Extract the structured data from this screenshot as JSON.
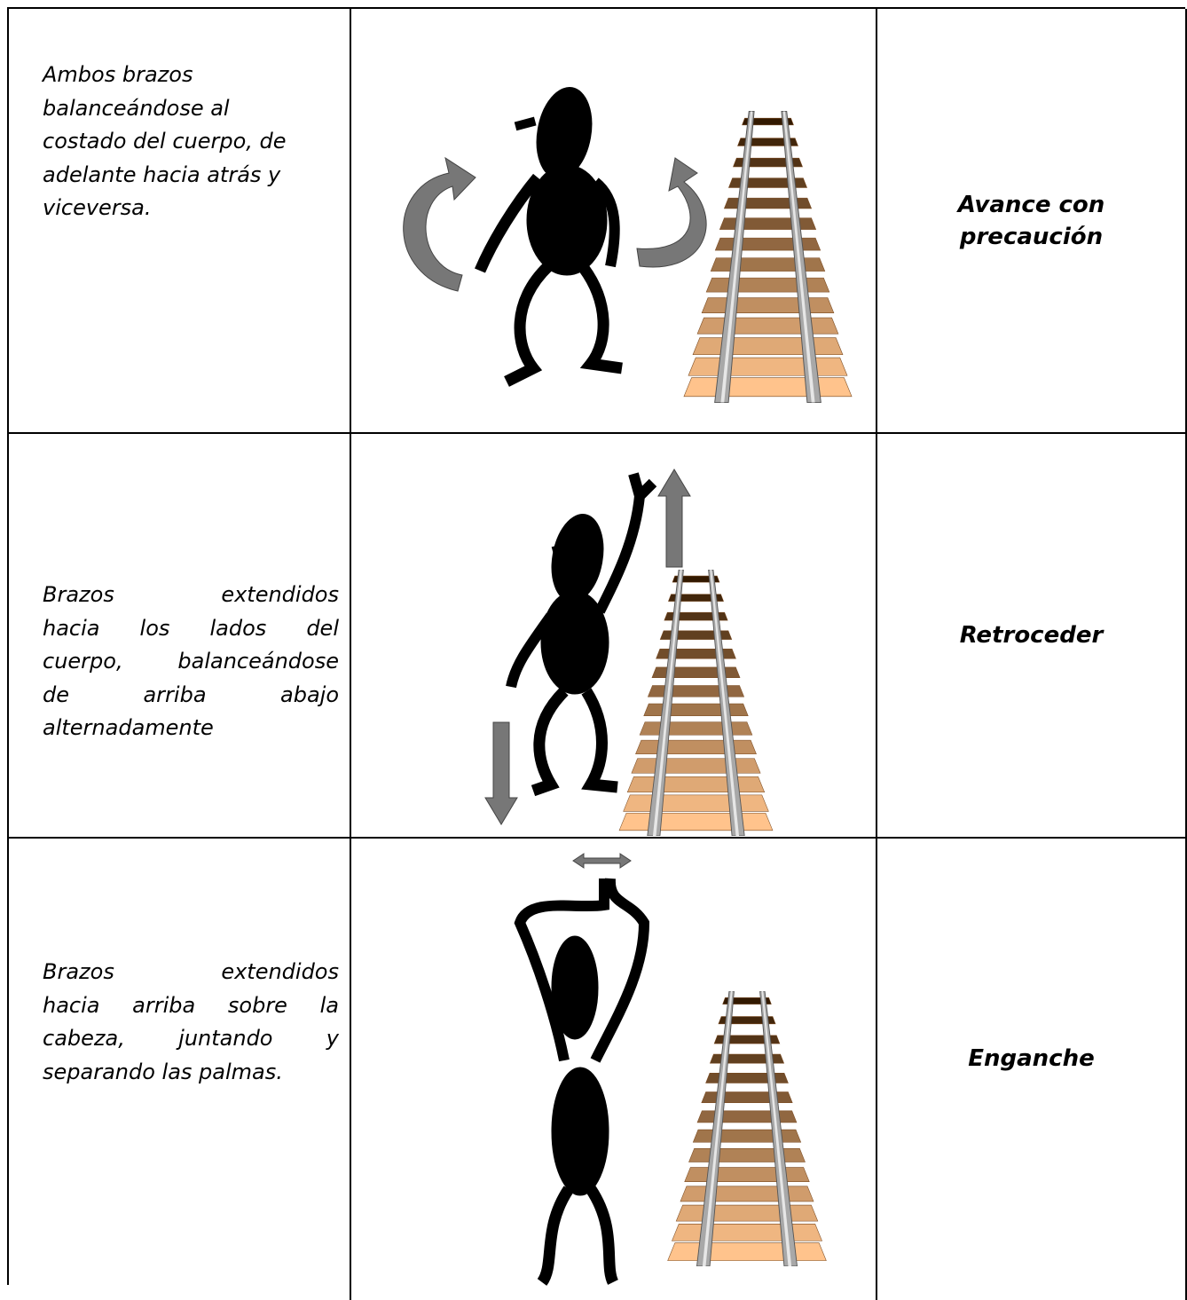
{
  "rows": [
    {
      "description_lines": [
        "Ambos brazos",
        "balanceándose al",
        "costado del cuerpo, de",
        "adelante hacia atrás y",
        "viceversa."
      ],
      "signal": "Avance con precaución"
    },
    {
      "description_lines": [
        "Brazos extendidos",
        "hacia los lados del",
        "cuerpo, balanceándose",
        "de arriba abajo",
        "alternadamente"
      ],
      "signal": "Retroceder"
    },
    {
      "description_lines": [
        "Brazos extendidos",
        "hacia arriba sobre la",
        "cabeza, juntando y",
        "separando las palmas."
      ],
      "signal": "Enganche"
    }
  ]
}
